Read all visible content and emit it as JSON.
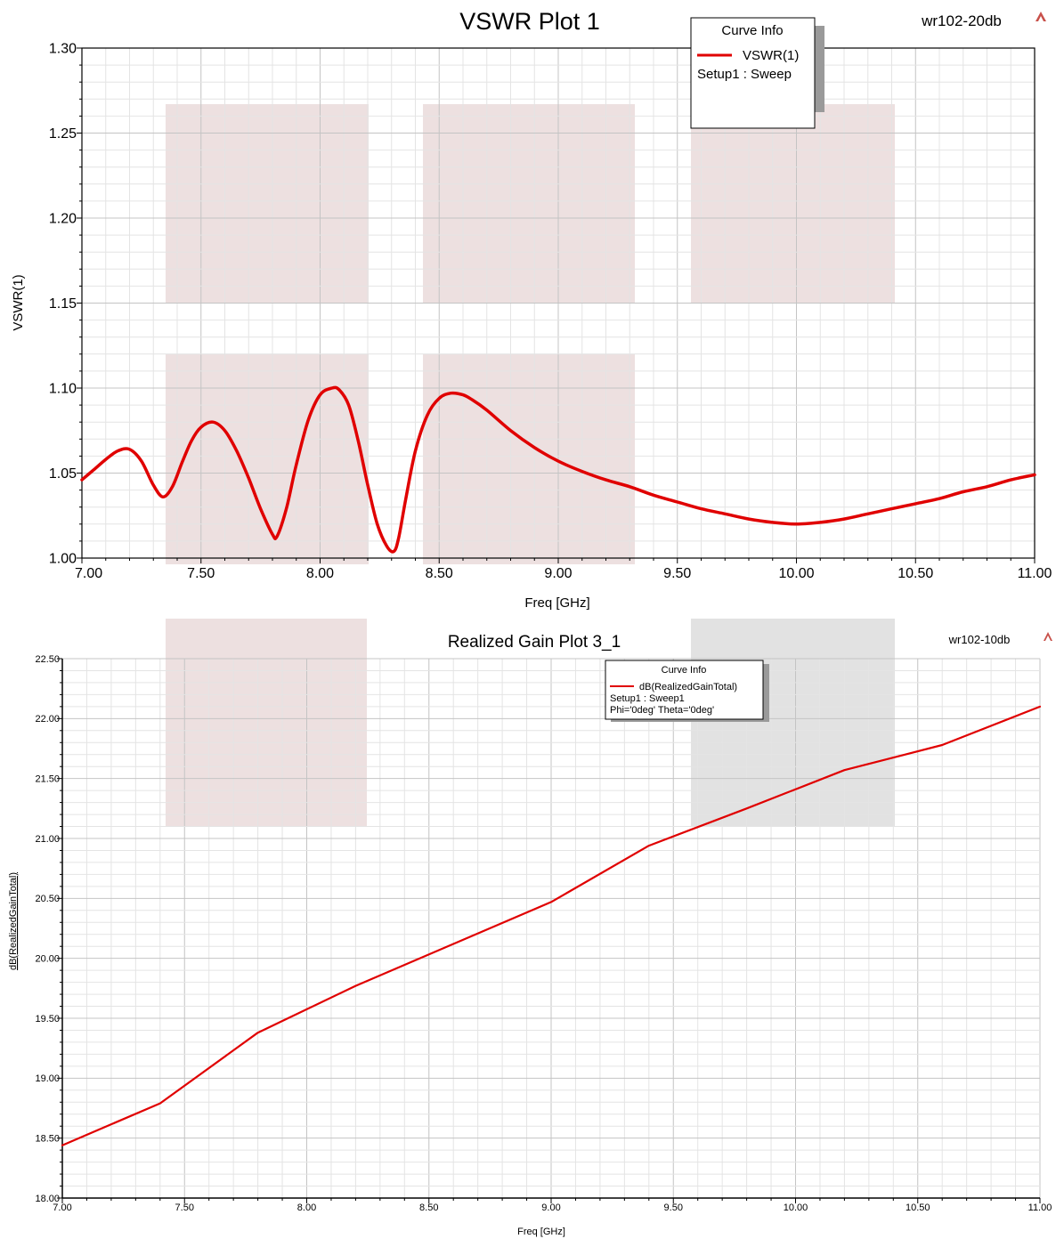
{
  "chart_data": [
    {
      "type": "line",
      "title": "VSWR Plot 1",
      "project_label": "wr102-20db",
      "xlabel": "Freq [GHz]",
      "ylabel": "VSWR(1)",
      "xlim": [
        7.0,
        11.0
      ],
      "ylim": [
        1.0,
        1.3
      ],
      "grid": true,
      "xticks": [
        "7.00",
        "7.50",
        "8.00",
        "8.50",
        "9.00",
        "9.50",
        "10.00",
        "10.50",
        "11.00"
      ],
      "yticks": [
        "1.00",
        "1.05",
        "1.10",
        "1.15",
        "1.20",
        "1.25",
        "1.30"
      ],
      "legend": {
        "title": "Curve Info",
        "placement": "top-right",
        "entries": [
          {
            "name": "VSWR(1)",
            "detail": [
              "Setup1 : Sweep"
            ]
          }
        ]
      },
      "series": [
        {
          "name": "VSWR(1)",
          "color": "#e00000",
          "x": [
            7.0,
            7.05,
            7.1,
            7.15,
            7.2,
            7.25,
            7.3,
            7.34,
            7.38,
            7.42,
            7.46,
            7.5,
            7.55,
            7.6,
            7.65,
            7.7,
            7.75,
            7.8,
            7.82,
            7.86,
            7.9,
            7.95,
            8.0,
            8.05,
            8.08,
            8.12,
            8.16,
            8.2,
            8.24,
            8.28,
            8.31,
            8.33,
            8.36,
            8.4,
            8.45,
            8.5,
            8.55,
            8.6,
            8.64,
            8.7,
            8.8,
            8.9,
            9.0,
            9.1,
            9.2,
            9.3,
            9.4,
            9.5,
            9.6,
            9.7,
            9.8,
            9.9,
            10.0,
            10.1,
            10.2,
            10.3,
            10.4,
            10.5,
            10.6,
            10.7,
            10.8,
            10.9,
            11.0
          ],
          "y": [
            1.046,
            1.052,
            1.058,
            1.063,
            1.064,
            1.057,
            1.043,
            1.036,
            1.042,
            1.056,
            1.069,
            1.077,
            1.08,
            1.075,
            1.063,
            1.047,
            1.029,
            1.014,
            1.013,
            1.03,
            1.055,
            1.081,
            1.096,
            1.1,
            1.099,
            1.09,
            1.069,
            1.043,
            1.02,
            1.007,
            1.004,
            1.012,
            1.035,
            1.063,
            1.084,
            1.094,
            1.097,
            1.096,
            1.093,
            1.087,
            1.075,
            1.065,
            1.057,
            1.051,
            1.046,
            1.042,
            1.037,
            1.033,
            1.029,
            1.026,
            1.023,
            1.021,
            1.02,
            1.021,
            1.023,
            1.026,
            1.029,
            1.032,
            1.035,
            1.039,
            1.042,
            1.046,
            1.049
          ]
        }
      ]
    },
    {
      "type": "line",
      "title": "Realized Gain Plot 3_1",
      "project_label": "wr102-10db",
      "xlabel": "Freq [GHz]",
      "ylabel": "dB(RealizedGainTotal)",
      "xlim": [
        7.0,
        11.0
      ],
      "ylim": [
        18.0,
        22.5
      ],
      "grid": true,
      "xticks": [
        "7.00",
        "7.50",
        "8.00",
        "8.50",
        "9.00",
        "9.50",
        "10.00",
        "10.50",
        "11.00"
      ],
      "yticks": [
        "18.00",
        "18.50",
        "19.00",
        "19.50",
        "20.00",
        "20.50",
        "21.00",
        "21.50",
        "22.00",
        "22.50"
      ],
      "legend": {
        "title": "Curve Info",
        "placement": "top-right",
        "entries": [
          {
            "name": "dB(RealizedGainTotal)",
            "detail": [
              "Setup1 : Sweep1",
              "Phi='0deg' Theta='0deg'"
            ]
          }
        ]
      },
      "series": [
        {
          "name": "dB(RealizedGainTotal)",
          "color": "#e00000",
          "x": [
            7.0,
            7.4,
            7.8,
            8.2,
            8.6,
            9.0,
            9.4,
            9.8,
            10.2,
            10.6,
            11.0
          ],
          "y": [
            18.44,
            18.79,
            19.38,
            19.77,
            20.12,
            20.47,
            20.94,
            21.25,
            21.57,
            21.78,
            22.1
          ]
        }
      ]
    }
  ]
}
